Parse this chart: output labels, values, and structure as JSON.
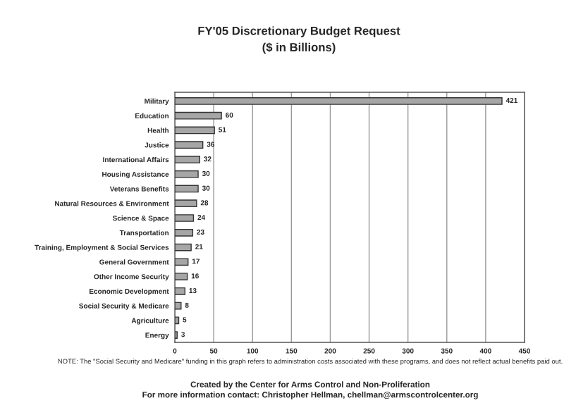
{
  "chart_data": {
    "type": "bar",
    "orientation": "horizontal",
    "title": "FY'05 Discretionary Budget Request",
    "subtitle": "($ in Billions)",
    "categories": [
      "Military",
      "Education",
      "Health",
      "Justice",
      "International Affairs",
      "Housing Assistance",
      "Veterans Benefits",
      "Natural Resources & Environment",
      "Science & Space",
      "Transportation",
      "Training, Employment & Social Services",
      "General Government",
      "Other Income Security",
      "Economic Development",
      "Social Security & Medicare",
      "Agriculture",
      "Energy"
    ],
    "values": [
      421,
      60,
      51,
      36,
      32,
      30,
      30,
      28,
      24,
      23,
      21,
      17,
      16,
      13,
      8,
      5,
      3
    ],
    "color": "#a6a6a6",
    "data_labels": true,
    "grid": "x",
    "xlim": [
      0,
      450
    ],
    "xticks": [
      0,
      50,
      100,
      150,
      200,
      250,
      300,
      350,
      400,
      450
    ],
    "annotations": [
      "NOTE: The \"Social Security and Medicare\" funding in this graph refers to administration costs associated with these programs, and does not reflect actual benefits paid out.",
      "Created by the Center for Arms Control and Non-Proliferation",
      "For more information contact: Christopher Hellman, chellman@armscontrolcenter.org"
    ]
  }
}
